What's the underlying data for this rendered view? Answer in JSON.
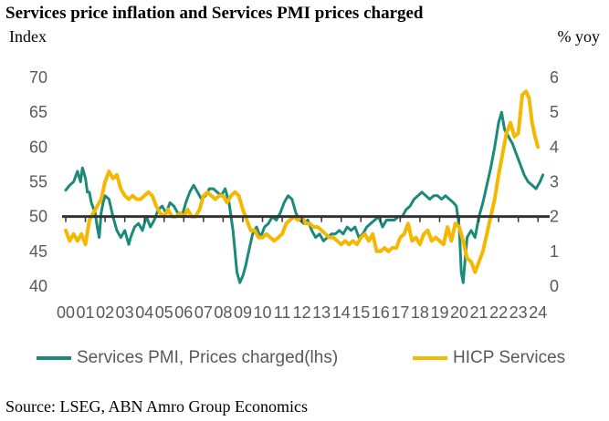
{
  "chart_data": {
    "type": "line",
    "title": "Services price inflation and Services PMI prices charged",
    "left_axis_label": "Index",
    "right_axis_label": "% yoy",
    "source": "Source: LSEG, ABN Amro Group Economics",
    "x_ticks": [
      "00",
      "01",
      "02",
      "03",
      "04",
      "05",
      "06",
      "07",
      "08",
      "09",
      "10",
      "11",
      "12",
      "13",
      "14",
      "15",
      "16",
      "17",
      "18",
      "19",
      "20",
      "21",
      "22",
      "23",
      "24"
    ],
    "xlim": [
      2000.0,
      2024.5
    ],
    "left_axis": {
      "ticks": [
        "40",
        "45",
        "50",
        "55",
        "60",
        "65",
        "70"
      ],
      "ylim": [
        40,
        70
      ]
    },
    "right_axis": {
      "ticks": [
        "0",
        "1",
        "2",
        "3",
        "4",
        "5",
        "6"
      ],
      "ylim": [
        0,
        6
      ]
    },
    "reference_line": {
      "axis": "left",
      "value": 50
    },
    "colors": {
      "pmi": "#1a8a7a",
      "hicp": "#f5b800",
      "axis": "#333333"
    },
    "series": [
      {
        "name": "Services PMI, Prices charged(lhs)",
        "axis": "left",
        "x": [
          2000.0,
          2000.2,
          2000.4,
          2000.6,
          2000.75,
          2000.85,
          2001.0,
          2001.1,
          2001.2,
          2001.3,
          2001.5,
          2001.6,
          2001.7,
          2001.8,
          2001.9,
          2002.0,
          2002.2,
          2002.4,
          2002.6,
          2002.8,
          2003.0,
          2003.2,
          2003.3,
          2003.5,
          2003.7,
          2003.9,
          2004.1,
          2004.3,
          2004.5,
          2004.7,
          2004.9,
          2005.1,
          2005.3,
          2005.5,
          2005.7,
          2005.9,
          2006.1,
          2006.3,
          2006.5,
          2006.7,
          2006.9,
          2007.1,
          2007.3,
          2007.5,
          2007.7,
          2007.9,
          2008.1,
          2008.3,
          2008.5,
          2008.7,
          2008.85,
          2009.0,
          2009.15,
          2009.3,
          2009.5,
          2009.7,
          2009.9,
          2010.1,
          2010.3,
          2010.5,
          2010.7,
          2010.9,
          2011.1,
          2011.3,
          2011.5,
          2011.7,
          2011.9,
          2012.1,
          2012.3,
          2012.5,
          2012.7,
          2012.9,
          2013.1,
          2013.3,
          2013.5,
          2013.7,
          2013.9,
          2014.1,
          2014.3,
          2014.5,
          2014.7,
          2014.9,
          2015.1,
          2015.3,
          2015.5,
          2015.7,
          2015.9,
          2016.1,
          2016.3,
          2016.5,
          2016.7,
          2016.9,
          2017.1,
          2017.3,
          2017.5,
          2017.7,
          2017.9,
          2018.1,
          2018.3,
          2018.5,
          2018.7,
          2018.9,
          2019.1,
          2019.3,
          2019.5,
          2019.7,
          2019.85,
          2020.0,
          2020.1,
          2020.2,
          2020.3,
          2020.4,
          2020.6,
          2020.8,
          2021.0,
          2021.2,
          2021.4,
          2021.6,
          2021.8,
          2022.0,
          2022.15,
          2022.3,
          2022.5,
          2022.7,
          2022.9,
          2023.1,
          2023.3,
          2023.5,
          2023.7,
          2023.9,
          2024.1,
          2024.25
        ],
        "values": [
          53.8,
          54.5,
          55.0,
          56.5,
          55.0,
          57.0,
          55.5,
          53.5,
          53.5,
          52.0,
          50.5,
          48.5,
          47.0,
          50.5,
          52.0,
          53.0,
          52.5,
          50.0,
          48.0,
          47.0,
          48.0,
          46.0,
          47.0,
          48.5,
          49.0,
          48.0,
          50.0,
          48.5,
          49.5,
          51.0,
          51.5,
          50.5,
          52.0,
          51.5,
          50.5,
          50.0,
          52.0,
          53.5,
          54.5,
          53.5,
          52.5,
          53.0,
          54.0,
          54.0,
          53.5,
          53.0,
          54.0,
          52.0,
          48.0,
          42.0,
          40.5,
          41.5,
          43.0,
          45.0,
          47.5,
          48.5,
          47.0,
          48.5,
          49.0,
          50.0,
          49.5,
          50.5,
          52.0,
          53.0,
          52.5,
          50.5,
          49.5,
          49.0,
          49.5,
          48.0,
          47.0,
          47.5,
          46.5,
          47.0,
          47.5,
          47.5,
          48.0,
          47.5,
          48.5,
          48.0,
          48.5,
          47.0,
          47.5,
          48.5,
          49.0,
          49.5,
          50.0,
          48.5,
          49.5,
          49.5,
          49.5,
          50.0,
          50.0,
          51.0,
          51.5,
          52.5,
          53.0,
          53.5,
          53.0,
          52.5,
          53.0,
          53.0,
          52.5,
          53.0,
          52.5,
          52.0,
          51.5,
          48.5,
          42.0,
          40.5,
          44.0,
          47.0,
          48.0,
          47.0,
          50.0,
          52.0,
          54.5,
          57.0,
          60.0,
          63.5,
          65.0,
          62.5,
          61.5,
          60.5,
          59.0,
          57.5,
          56.0,
          55.0,
          54.5,
          54.0,
          55.0,
          56.0
        ]
      },
      {
        "name": "HICP Services",
        "axis": "right",
        "x": [
          2000.0,
          2000.2,
          2000.4,
          2000.6,
          2000.8,
          2001.0,
          2001.2,
          2001.4,
          2001.6,
          2001.8,
          2002.0,
          2002.2,
          2002.4,
          2002.6,
          2002.8,
          2003.0,
          2003.2,
          2003.4,
          2003.6,
          2003.8,
          2004.0,
          2004.2,
          2004.4,
          2004.6,
          2004.8,
          2005.0,
          2005.2,
          2005.4,
          2005.6,
          2005.8,
          2006.0,
          2006.2,
          2006.4,
          2006.6,
          2006.8,
          2007.0,
          2007.2,
          2007.4,
          2007.6,
          2007.8,
          2008.0,
          2008.2,
          2008.4,
          2008.6,
          2008.8,
          2009.0,
          2009.2,
          2009.4,
          2009.6,
          2009.8,
          2010.0,
          2010.2,
          2010.4,
          2010.6,
          2010.8,
          2011.0,
          2011.2,
          2011.4,
          2011.6,
          2011.8,
          2012.0,
          2012.2,
          2012.4,
          2012.6,
          2012.8,
          2013.0,
          2013.2,
          2013.4,
          2013.6,
          2013.8,
          2014.0,
          2014.2,
          2014.4,
          2014.6,
          2014.8,
          2015.0,
          2015.2,
          2015.4,
          2015.6,
          2015.8,
          2016.0,
          2016.2,
          2016.4,
          2016.6,
          2016.8,
          2017.0,
          2017.2,
          2017.4,
          2017.6,
          2017.8,
          2018.0,
          2018.2,
          2018.4,
          2018.6,
          2018.8,
          2019.0,
          2019.2,
          2019.4,
          2019.6,
          2019.8,
          2020.0,
          2020.2,
          2020.4,
          2020.6,
          2020.8,
          2021.0,
          2021.2,
          2021.4,
          2021.6,
          2021.8,
          2022.0,
          2022.2,
          2022.4,
          2022.6,
          2022.8,
          2023.0,
          2023.2,
          2023.4,
          2023.55,
          2023.7,
          2023.85,
          2024.0
        ],
        "values": [
          1.6,
          1.3,
          1.5,
          1.3,
          1.5,
          1.2,
          1.9,
          2.1,
          2.3,
          2.5,
          3.0,
          3.3,
          3.1,
          3.2,
          2.8,
          2.6,
          2.5,
          2.6,
          2.5,
          2.5,
          2.6,
          2.7,
          2.6,
          2.3,
          2.1,
          2.0,
          2.2,
          2.0,
          2.0,
          2.1,
          2.0,
          2.2,
          2.0,
          2.0,
          2.2,
          2.6,
          2.7,
          2.6,
          2.5,
          2.6,
          2.6,
          2.4,
          2.6,
          2.7,
          2.6,
          2.2,
          1.9,
          1.6,
          1.6,
          1.4,
          1.4,
          1.5,
          1.4,
          1.3,
          1.4,
          1.5,
          1.8,
          1.9,
          2.0,
          1.9,
          2.0,
          1.8,
          1.8,
          1.7,
          1.7,
          1.6,
          1.5,
          1.4,
          1.4,
          1.3,
          1.2,
          1.3,
          1.2,
          1.3,
          1.2,
          1.4,
          1.5,
          1.3,
          1.5,
          1.0,
          1.0,
          1.1,
          1.0,
          1.1,
          1.1,
          1.4,
          1.5,
          1.8,
          1.3,
          1.4,
          1.2,
          1.5,
          1.6,
          1.3,
          1.4,
          1.3,
          1.2,
          1.7,
          1.3,
          1.8,
          1.7,
          1.3,
          0.8,
          0.7,
          0.4,
          0.7,
          1.0,
          1.5,
          2.0,
          2.5,
          3.2,
          3.8,
          4.4,
          4.7,
          4.3,
          4.4,
          5.5,
          5.6,
          5.4,
          4.7,
          4.3,
          4.0
        ]
      }
    ]
  }
}
